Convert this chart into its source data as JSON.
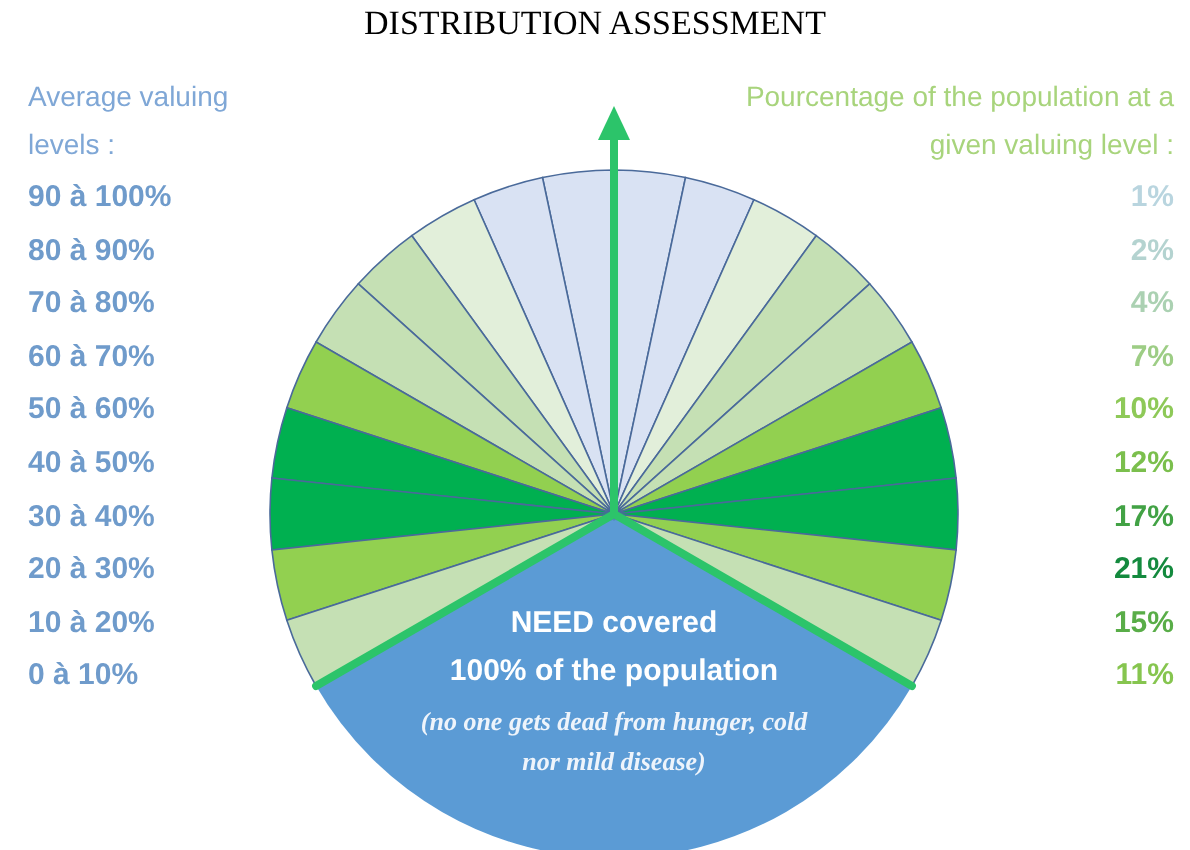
{
  "chart_data": {
    "type": "other",
    "title": "DISTRIBUTION ASSESSMENT",
    "categories": [
      "90 à 100%",
      "80 à 90%",
      "70 à 80%",
      "60 à 70%",
      "50 à 60%",
      "40 à 50%",
      "30 à 40%",
      "20 à 30%",
      "10 à 20%",
      "0 à 10%"
    ],
    "values": [
      1,
      2,
      4,
      7,
      10,
      12,
      17,
      21,
      15,
      11
    ],
    "value_labels": [
      "1%",
      "2%",
      "4%",
      "7%",
      "10%",
      "12%",
      "17%",
      "21%",
      "15%",
      "11%"
    ],
    "colors": [
      "#d9e2f3",
      "#d9e2f3",
      "#e2efda",
      "#c5e0b4",
      "#c5e0b4",
      "#92d050",
      "#00b050",
      "#00b050",
      "#92d050",
      "#c5e0b4"
    ],
    "annotations": [
      "Average valuing levels :",
      "Pourcentage of the population at a given valuing level :",
      "NEED covered",
      "100% of the population",
      "(no one gets dead from hunger, cold nor mild disease)"
    ]
  }
}
